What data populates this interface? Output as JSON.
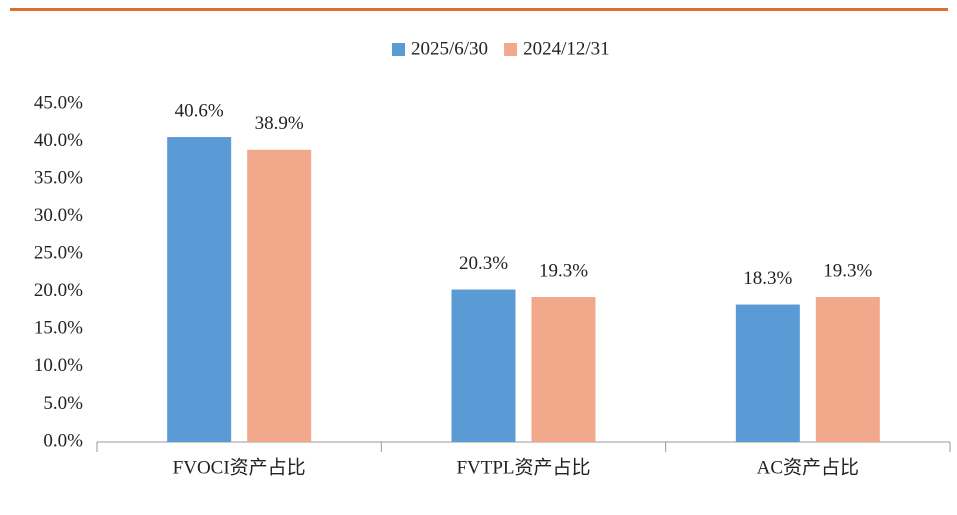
{
  "chart_data": {
    "type": "bar",
    "categories": [
      "FVOCI资产占比",
      "FVTPL资产占比",
      "AC资产占比"
    ],
    "series": [
      {
        "name": "2025/6/30",
        "color": "#5b9bd5",
        "values": [
          40.6,
          20.3,
          18.3
        ],
        "value_labels": [
          "40.6%",
          "20.3%",
          "18.3%"
        ]
      },
      {
        "name": "2024/12/31",
        "color": "#f1a88b",
        "values": [
          38.9,
          19.3,
          19.3
        ],
        "value_labels": [
          "38.9%",
          "19.3%",
          "19.3%"
        ]
      }
    ],
    "ylim": [
      0,
      45
    ],
    "yticks": [
      {
        "value": 0,
        "label": "0.0%"
      },
      {
        "value": 5,
        "label": "5.0%"
      },
      {
        "value": 10,
        "label": "10.0%"
      },
      {
        "value": 15,
        "label": "15.0%"
      },
      {
        "value": 20,
        "label": "20.0%"
      },
      {
        "value": 25,
        "label": "25.0%"
      },
      {
        "value": 30,
        "label": "30.0%"
      },
      {
        "value": 35,
        "label": "35.0%"
      },
      {
        "value": 40,
        "label": "40.0%"
      },
      {
        "value": 45,
        "label": "45.0%"
      }
    ],
    "grid": false,
    "legend": "top"
  }
}
